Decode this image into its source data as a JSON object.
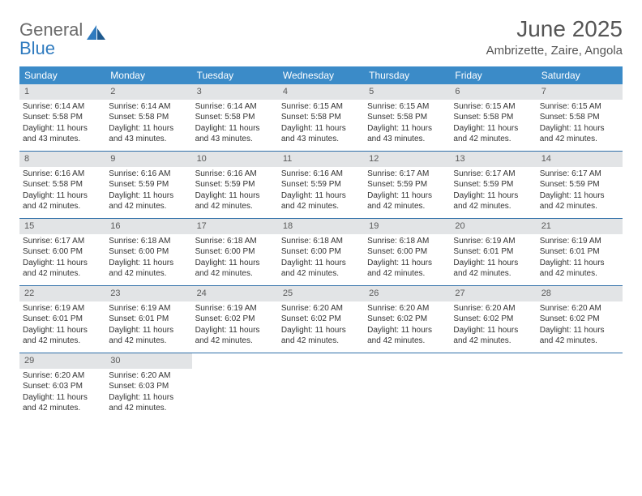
{
  "logo": {
    "word1": "General",
    "word2": "Blue"
  },
  "title": "June 2025",
  "location": "Ambrizette, Zaire, Angola",
  "colors": {
    "header_bg": "#3b8bc8",
    "week_border": "#2f6fa8",
    "daynum_bg": "#e2e4e6",
    "text": "#333333",
    "title_text": "#555555"
  },
  "weekdays": [
    "Sunday",
    "Monday",
    "Tuesday",
    "Wednesday",
    "Thursday",
    "Friday",
    "Saturday"
  ],
  "weeks": [
    [
      {
        "n": "1",
        "sr": "6:14 AM",
        "ss": "5:58 PM",
        "dl": "11 hours and 43 minutes."
      },
      {
        "n": "2",
        "sr": "6:14 AM",
        "ss": "5:58 PM",
        "dl": "11 hours and 43 minutes."
      },
      {
        "n": "3",
        "sr": "6:14 AM",
        "ss": "5:58 PM",
        "dl": "11 hours and 43 minutes."
      },
      {
        "n": "4",
        "sr": "6:15 AM",
        "ss": "5:58 PM",
        "dl": "11 hours and 43 minutes."
      },
      {
        "n": "5",
        "sr": "6:15 AM",
        "ss": "5:58 PM",
        "dl": "11 hours and 43 minutes."
      },
      {
        "n": "6",
        "sr": "6:15 AM",
        "ss": "5:58 PM",
        "dl": "11 hours and 42 minutes."
      },
      {
        "n": "7",
        "sr": "6:15 AM",
        "ss": "5:58 PM",
        "dl": "11 hours and 42 minutes."
      }
    ],
    [
      {
        "n": "8",
        "sr": "6:16 AM",
        "ss": "5:58 PM",
        "dl": "11 hours and 42 minutes."
      },
      {
        "n": "9",
        "sr": "6:16 AM",
        "ss": "5:59 PM",
        "dl": "11 hours and 42 minutes."
      },
      {
        "n": "10",
        "sr": "6:16 AM",
        "ss": "5:59 PM",
        "dl": "11 hours and 42 minutes."
      },
      {
        "n": "11",
        "sr": "6:16 AM",
        "ss": "5:59 PM",
        "dl": "11 hours and 42 minutes."
      },
      {
        "n": "12",
        "sr": "6:17 AM",
        "ss": "5:59 PM",
        "dl": "11 hours and 42 minutes."
      },
      {
        "n": "13",
        "sr": "6:17 AM",
        "ss": "5:59 PM",
        "dl": "11 hours and 42 minutes."
      },
      {
        "n": "14",
        "sr": "6:17 AM",
        "ss": "5:59 PM",
        "dl": "11 hours and 42 minutes."
      }
    ],
    [
      {
        "n": "15",
        "sr": "6:17 AM",
        "ss": "6:00 PM",
        "dl": "11 hours and 42 minutes."
      },
      {
        "n": "16",
        "sr": "6:18 AM",
        "ss": "6:00 PM",
        "dl": "11 hours and 42 minutes."
      },
      {
        "n": "17",
        "sr": "6:18 AM",
        "ss": "6:00 PM",
        "dl": "11 hours and 42 minutes."
      },
      {
        "n": "18",
        "sr": "6:18 AM",
        "ss": "6:00 PM",
        "dl": "11 hours and 42 minutes."
      },
      {
        "n": "19",
        "sr": "6:18 AM",
        "ss": "6:00 PM",
        "dl": "11 hours and 42 minutes."
      },
      {
        "n": "20",
        "sr": "6:19 AM",
        "ss": "6:01 PM",
        "dl": "11 hours and 42 minutes."
      },
      {
        "n": "21",
        "sr": "6:19 AM",
        "ss": "6:01 PM",
        "dl": "11 hours and 42 minutes."
      }
    ],
    [
      {
        "n": "22",
        "sr": "6:19 AM",
        "ss": "6:01 PM",
        "dl": "11 hours and 42 minutes."
      },
      {
        "n": "23",
        "sr": "6:19 AM",
        "ss": "6:01 PM",
        "dl": "11 hours and 42 minutes."
      },
      {
        "n": "24",
        "sr": "6:19 AM",
        "ss": "6:02 PM",
        "dl": "11 hours and 42 minutes."
      },
      {
        "n": "25",
        "sr": "6:20 AM",
        "ss": "6:02 PM",
        "dl": "11 hours and 42 minutes."
      },
      {
        "n": "26",
        "sr": "6:20 AM",
        "ss": "6:02 PM",
        "dl": "11 hours and 42 minutes."
      },
      {
        "n": "27",
        "sr": "6:20 AM",
        "ss": "6:02 PM",
        "dl": "11 hours and 42 minutes."
      },
      {
        "n": "28",
        "sr": "6:20 AM",
        "ss": "6:02 PM",
        "dl": "11 hours and 42 minutes."
      }
    ],
    [
      {
        "n": "29",
        "sr": "6:20 AM",
        "ss": "6:03 PM",
        "dl": "11 hours and 42 minutes."
      },
      {
        "n": "30",
        "sr": "6:20 AM",
        "ss": "6:03 PM",
        "dl": "11 hours and 42 minutes."
      },
      {
        "empty": true
      },
      {
        "empty": true
      },
      {
        "empty": true
      },
      {
        "empty": true
      },
      {
        "empty": true
      }
    ]
  ],
  "labels": {
    "sunrise": "Sunrise:",
    "sunset": "Sunset:",
    "daylight": "Daylight:"
  }
}
